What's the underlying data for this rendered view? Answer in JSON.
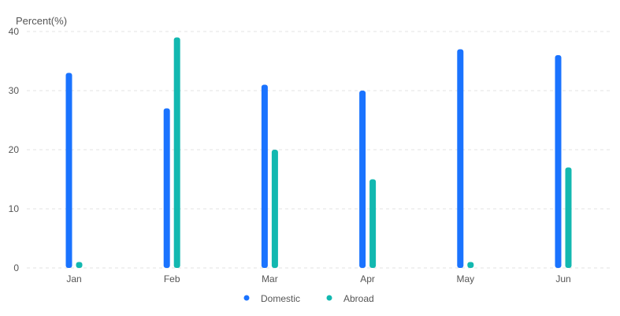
{
  "chart_data": {
    "type": "bar",
    "title": "",
    "ylabel": "Percent(%)",
    "xlabel": "",
    "categories": [
      "Jan",
      "Feb",
      "Mar",
      "Apr",
      "May",
      "Jun"
    ],
    "ylim": [
      0,
      40
    ],
    "yticks": [
      0,
      10,
      20,
      30,
      40
    ],
    "grid": true,
    "legend_position": "bottom",
    "series": [
      {
        "name": "Domestic",
        "color": "#1a73ff",
        "values": [
          33,
          27,
          31,
          30,
          37,
          36
        ]
      },
      {
        "name": "Abroad",
        "color": "#12b8b0",
        "values": [
          1,
          39,
          20,
          15,
          1,
          17
        ]
      }
    ]
  }
}
